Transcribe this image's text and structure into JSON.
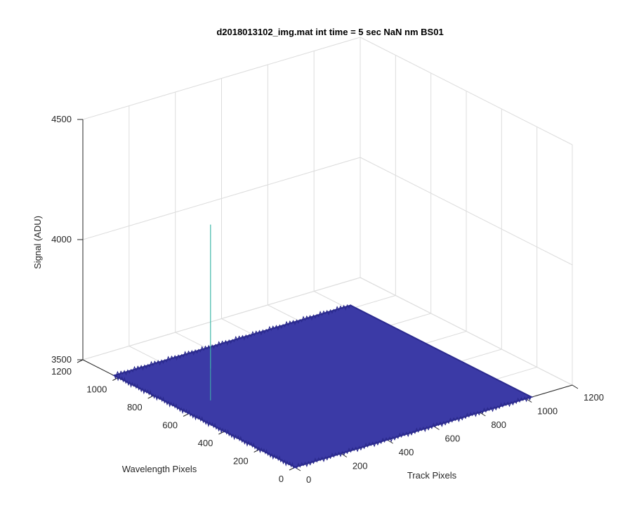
{
  "chart_data": {
    "type": "surface",
    "title": "d2018013102_img.mat int time = 5 sec  NaN nm BS01",
    "xlabel": "Track Pixels",
    "ylabel": "Wavelength Pixels",
    "zlabel": "Signal (ADU)",
    "xlim": [
      0,
      1200
    ],
    "ylim": [
      0,
      1200
    ],
    "zlim": [
      3500,
      4500
    ],
    "x_ticks": [
      "0",
      "200",
      "400",
      "600",
      "800",
      "1000",
      "1200"
    ],
    "y_ticks": [
      "0",
      "200",
      "400",
      "600",
      "800",
      "1000",
      "1200"
    ],
    "z_ticks": [
      "3500",
      "4000",
      "4500"
    ],
    "grid": true,
    "surface": {
      "x_range": [
        1,
        1024
      ],
      "y_range": [
        1,
        1024
      ],
      "baseline_signal": 3500,
      "spike": {
        "x": 300,
        "y": 870,
        "peak": 4100
      }
    },
    "colors": {
      "surface": "#3b3aa6",
      "surface_dark": "#2b2a8e",
      "spike": "#3fb8a8",
      "grid": "#dcdcdc",
      "axis": "#262626"
    }
  }
}
